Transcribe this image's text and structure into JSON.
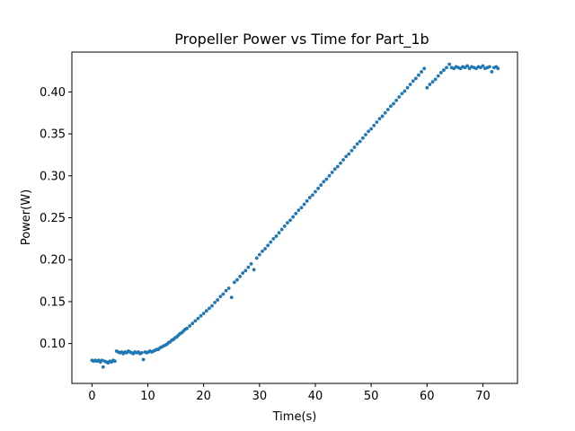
{
  "chart_data": {
    "type": "scatter",
    "title": "Propeller Power vs Time for Part_1b",
    "xlabel": "Time(s)",
    "ylabel": "Power(W)",
    "xlim": [
      -3.6,
      76.2
    ],
    "ylim": [
      0.0525,
      0.4475
    ],
    "xticks": [
      0,
      10,
      20,
      30,
      40,
      50,
      60,
      70
    ],
    "xtick_labels": [
      "0",
      "10",
      "20",
      "30",
      "40",
      "50",
      "60",
      "70"
    ],
    "yticks": [
      0.1,
      0.15,
      0.2,
      0.25,
      0.3,
      0.35,
      0.4
    ],
    "ytick_labels": [
      "0.10",
      "0.15",
      "0.20",
      "0.25",
      "0.30",
      "0.35",
      "0.40"
    ],
    "grid": false,
    "legend": "none",
    "marker_color": "#1f77b4",
    "series": [
      {
        "points": [
          [
            0.0,
            0.08
          ],
          [
            0.3,
            0.079
          ],
          [
            0.6,
            0.08
          ],
          [
            0.9,
            0.079
          ],
          [
            1.2,
            0.08
          ],
          [
            1.5,
            0.078
          ],
          [
            1.8,
            0.08
          ],
          [
            2.0,
            0.072
          ],
          [
            2.3,
            0.079
          ],
          [
            2.6,
            0.078
          ],
          [
            2.9,
            0.077
          ],
          [
            3.2,
            0.079
          ],
          [
            3.5,
            0.078
          ],
          [
            3.8,
            0.08
          ],
          [
            4.1,
            0.079
          ],
          [
            4.4,
            0.091
          ],
          [
            4.7,
            0.09
          ],
          [
            5.0,
            0.089
          ],
          [
            5.3,
            0.09
          ],
          [
            5.6,
            0.088
          ],
          [
            5.9,
            0.09
          ],
          [
            6.2,
            0.089
          ],
          [
            6.5,
            0.091
          ],
          [
            6.8,
            0.09
          ],
          [
            7.1,
            0.089
          ],
          [
            7.4,
            0.088
          ],
          [
            7.7,
            0.09
          ],
          [
            8.0,
            0.089
          ],
          [
            8.3,
            0.09
          ],
          [
            8.6,
            0.088
          ],
          [
            8.9,
            0.089
          ],
          [
            9.2,
            0.081
          ],
          [
            9.5,
            0.09
          ],
          [
            9.8,
            0.089
          ],
          [
            10.1,
            0.09
          ],
          [
            10.4,
            0.091
          ],
          [
            10.7,
            0.09
          ],
          [
            11.0,
            0.091
          ],
          [
            11.3,
            0.092
          ],
          [
            11.6,
            0.093
          ],
          [
            11.9,
            0.093
          ],
          [
            12.2,
            0.095
          ],
          [
            12.5,
            0.096
          ],
          [
            12.8,
            0.097
          ],
          [
            13.1,
            0.098
          ],
          [
            13.4,
            0.099
          ],
          [
            13.7,
            0.101
          ],
          [
            14.0,
            0.102
          ],
          [
            14.3,
            0.104
          ],
          [
            14.6,
            0.105
          ],
          [
            14.9,
            0.107
          ],
          [
            15.2,
            0.108
          ],
          [
            15.5,
            0.11
          ],
          [
            15.8,
            0.112
          ],
          [
            16.1,
            0.113
          ],
          [
            16.4,
            0.115
          ],
          [
            16.7,
            0.117
          ],
          [
            17.0,
            0.118
          ],
          [
            17.5,
            0.121
          ],
          [
            18.0,
            0.124
          ],
          [
            18.5,
            0.127
          ],
          [
            19.0,
            0.13
          ],
          [
            19.5,
            0.133
          ],
          [
            20.0,
            0.136
          ],
          [
            20.5,
            0.139
          ],
          [
            21.0,
            0.142
          ],
          [
            21.5,
            0.145
          ],
          [
            22.0,
            0.149
          ],
          [
            22.5,
            0.152
          ],
          [
            23.0,
            0.156
          ],
          [
            23.5,
            0.159
          ],
          [
            24.0,
            0.163
          ],
          [
            24.5,
            0.166
          ],
          [
            25.0,
            0.155
          ],
          [
            25.5,
            0.173
          ],
          [
            26.0,
            0.176
          ],
          [
            26.5,
            0.18
          ],
          [
            27.0,
            0.184
          ],
          [
            27.5,
            0.187
          ],
          [
            28.0,
            0.191
          ],
          [
            28.5,
            0.195
          ],
          [
            29.0,
            0.188
          ],
          [
            29.5,
            0.202
          ],
          [
            30.0,
            0.206
          ],
          [
            30.5,
            0.21
          ],
          [
            31.0,
            0.213
          ],
          [
            31.5,
            0.217
          ],
          [
            32.0,
            0.221
          ],
          [
            32.5,
            0.225
          ],
          [
            33.0,
            0.228
          ],
          [
            33.5,
            0.232
          ],
          [
            34.0,
            0.236
          ],
          [
            34.5,
            0.24
          ],
          [
            35.0,
            0.244
          ],
          [
            35.5,
            0.247
          ],
          [
            36.0,
            0.251
          ],
          [
            36.5,
            0.255
          ],
          [
            37.0,
            0.259
          ],
          [
            37.5,
            0.262
          ],
          [
            38.0,
            0.266
          ],
          [
            38.5,
            0.27
          ],
          [
            39.0,
            0.274
          ],
          [
            39.5,
            0.277
          ],
          [
            40.0,
            0.281
          ],
          [
            40.5,
            0.285
          ],
          [
            41.0,
            0.289
          ],
          [
            41.5,
            0.293
          ],
          [
            42.0,
            0.296
          ],
          [
            42.5,
            0.3
          ],
          [
            43.0,
            0.304
          ],
          [
            43.5,
            0.308
          ],
          [
            44.0,
            0.311
          ],
          [
            44.5,
            0.315
          ],
          [
            45.0,
            0.319
          ],
          [
            45.5,
            0.323
          ],
          [
            46.0,
            0.326
          ],
          [
            46.5,
            0.33
          ],
          [
            47.0,
            0.334
          ],
          [
            47.5,
            0.338
          ],
          [
            48.0,
            0.341
          ],
          [
            48.5,
            0.345
          ],
          [
            49.0,
            0.349
          ],
          [
            49.5,
            0.353
          ],
          [
            50.0,
            0.356
          ],
          [
            50.5,
            0.36
          ],
          [
            51.0,
            0.364
          ],
          [
            51.5,
            0.368
          ],
          [
            52.0,
            0.371
          ],
          [
            52.5,
            0.375
          ],
          [
            53.0,
            0.379
          ],
          [
            53.5,
            0.383
          ],
          [
            54.0,
            0.386
          ],
          [
            54.5,
            0.39
          ],
          [
            55.0,
            0.394
          ],
          [
            55.5,
            0.398
          ],
          [
            56.0,
            0.401
          ],
          [
            56.5,
            0.405
          ],
          [
            57.0,
            0.409
          ],
          [
            57.5,
            0.413
          ],
          [
            58.0,
            0.416
          ],
          [
            58.5,
            0.42
          ],
          [
            59.0,
            0.424
          ],
          [
            59.5,
            0.428
          ],
          [
            60.0,
            0.405
          ],
          [
            60.5,
            0.409
          ],
          [
            61.0,
            0.412
          ],
          [
            61.5,
            0.415
          ],
          [
            62.0,
            0.419
          ],
          [
            62.5,
            0.423
          ],
          [
            63.0,
            0.426
          ],
          [
            63.5,
            0.429
          ],
          [
            64.0,
            0.433
          ],
          [
            64.4,
            0.429
          ],
          [
            64.8,
            0.428
          ],
          [
            65.2,
            0.43
          ],
          [
            65.6,
            0.429
          ],
          [
            66.0,
            0.428
          ],
          [
            66.4,
            0.43
          ],
          [
            66.8,
            0.429
          ],
          [
            67.2,
            0.431
          ],
          [
            67.6,
            0.428
          ],
          [
            68.0,
            0.43
          ],
          [
            68.4,
            0.429
          ],
          [
            68.8,
            0.428
          ],
          [
            69.2,
            0.43
          ],
          [
            69.6,
            0.429
          ],
          [
            70.0,
            0.431
          ],
          [
            70.4,
            0.428
          ],
          [
            70.8,
            0.429
          ],
          [
            71.2,
            0.43
          ],
          [
            71.6,
            0.424
          ],
          [
            72.0,
            0.429
          ],
          [
            72.4,
            0.43
          ],
          [
            72.7,
            0.428
          ]
        ]
      }
    ]
  }
}
